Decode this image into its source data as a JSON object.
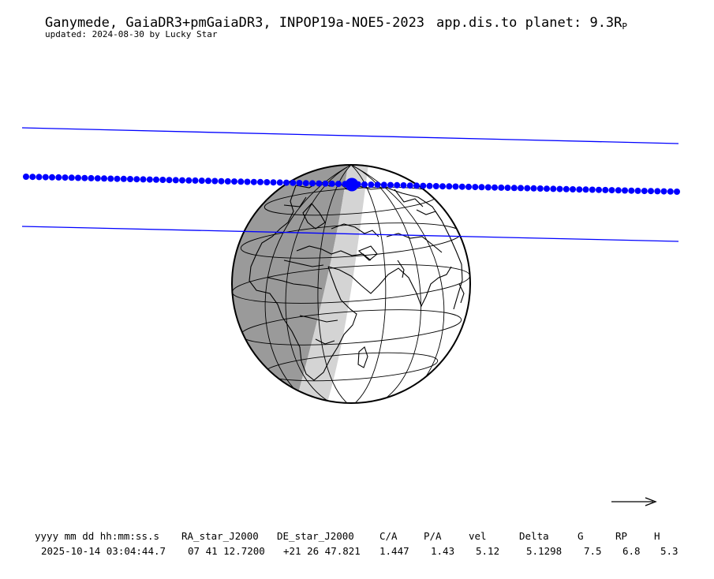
{
  "header": {
    "title": "Ganymede, GaiaDR3+pmGaiaDR3, INPOP19a-NOE5-2023",
    "distance_text": "app.dis.to planet: 9.3R",
    "distance_subscript": "P",
    "updated": "updated: 2024-08-30 by Lucky Star"
  },
  "table": {
    "headers": [
      "yyyy mm dd hh:mm:ss.s",
      "RA_star_J2000",
      "DE_star_J2000",
      "C/A",
      "P/A",
      "vel",
      "Delta",
      "G",
      "RP",
      "H"
    ],
    "values": [
      "2025-10-14 03:04:44.7",
      "07 41 12.7200",
      "+21 26 47.821",
      "1.447",
      "1.43",
      "5.12",
      "5.1298",
      "7.5",
      "6.8",
      "5.3"
    ]
  },
  "map": {
    "colors": {
      "path": "#0000ff",
      "night": "#9a9a9a",
      "twilight": "#d4d4d4",
      "day": "#ffffff",
      "outline": "#000000"
    },
    "icons": [
      "direction-arrow-icon",
      "globe-icon"
    ]
  }
}
